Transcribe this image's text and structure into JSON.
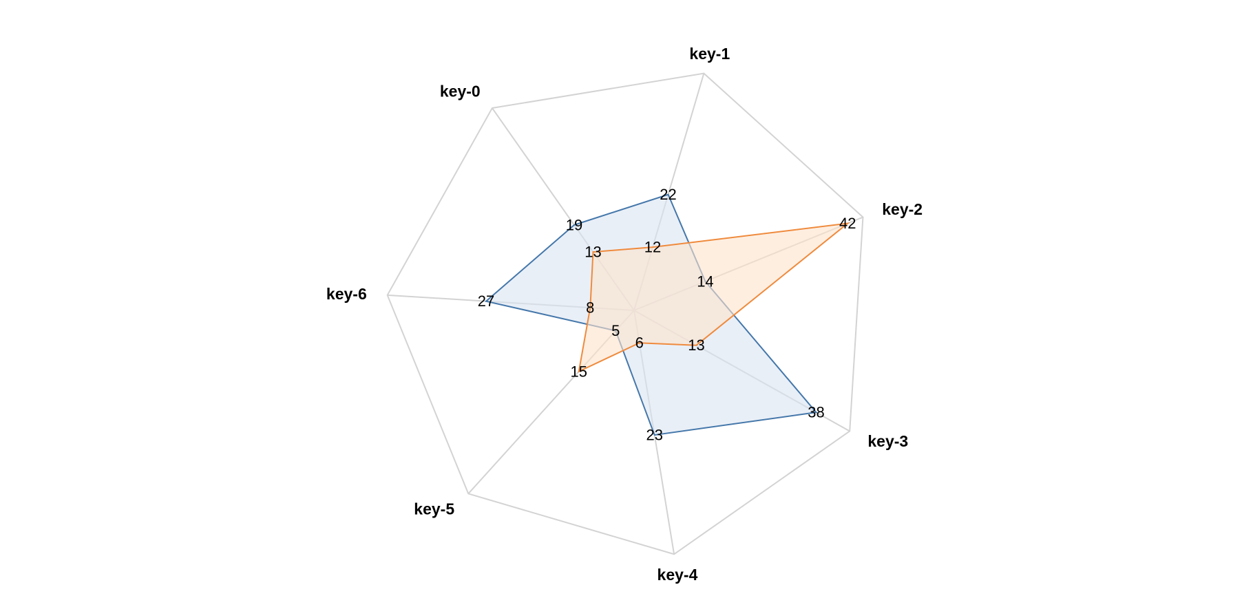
{
  "chart_data": {
    "type": "radar",
    "title": "",
    "categories": [
      "key-0",
      "key-1",
      "key-2",
      "key-3",
      "key-4",
      "key-5",
      "key-6"
    ],
    "rlim": [
      0,
      45
    ],
    "grid": true,
    "legend": "none",
    "series": [
      {
        "color": "#4477aa",
        "fill": "#dbe4f2",
        "values": [
          19,
          22,
          14,
          38,
          23,
          5,
          27
        ]
      },
      {
        "color": "#ef8a3c",
        "fill": "#fde3cb",
        "values": [
          13,
          12,
          42,
          13,
          6,
          15,
          8
        ]
      }
    ]
  }
}
